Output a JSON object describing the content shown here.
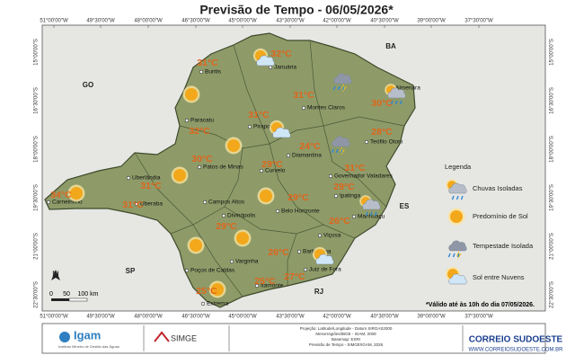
{
  "title": "Previsão de Tempo - 06/05/2026*",
  "longitudes": [
    "51°00'00\"W",
    "49°30'00\"W",
    "48°00'00\"W",
    "46°30'00\"W",
    "45°00'00\"W",
    "43°30'00\"W",
    "42°00'00\"W",
    "40°30'00\"W",
    "39°00'00\"W",
    "37°30'00\"W"
  ],
  "latitudes": [
    "15°00'00\"S",
    "16°30'00\"S",
    "18°00'00\"S",
    "19°30'00\"S",
    "21°00'00\"S",
    "22°30'00\"S"
  ],
  "states": [
    "GO",
    "BA",
    "ES",
    "SP",
    "RJ"
  ],
  "cities": [
    "Buritis",
    "Januária",
    "Montes Claros",
    "Almenara",
    "Paracatu",
    "Pirapora",
    "Teófilo Otoni",
    "Diamantina",
    "Patos de Minas",
    "Curvelo",
    "Governador Valadares",
    "Uberlândia",
    "Ipatinga",
    "Campos Altos",
    "Uberaba",
    "Carneirinho",
    "Divinópolis",
    "Belo Horizonte",
    "Manhuaçu",
    "Viçosa",
    "Barbacena",
    "Juiz de Fora",
    "Poços de Caldas",
    "Varginha",
    "Itamonte",
    "Extrema"
  ],
  "temperatures": [
    "32°C",
    "31°C",
    "31°C",
    "30°C",
    "31°C",
    "32°C",
    "28°C",
    "24°C",
    "30°C",
    "29°C",
    "31°C",
    "31°C",
    "29°C",
    "34°C",
    "29°C",
    "31°C",
    "26°C",
    "29°C",
    "26°C",
    "27°C",
    "25°C",
    "25°C"
  ],
  "legend": {
    "title": "Legenda",
    "items": [
      "Chuvas Isoladas",
      "Predomínio de Sol",
      "Tempestade Isolada",
      "Sol entre Nuvens"
    ]
  },
  "note": "*Válido até às 10h do dia 07/05/2026.",
  "scale": [
    "0",
    "50",
    "100 km"
  ],
  "north": "N",
  "footer": {
    "igam": "Igam",
    "igam_sub": "Instituto Mineiro de Gestão das Águas",
    "simge": "SIMGE",
    "credits": [
      "Projeção: Latitude/Longitude - Datum SIRGAS2000",
      "Mesorregiões/IBGE - IGAM, 2009",
      "Basemap: ESRI",
      "Previsão de Tempo - SIMGE/IGAM, 2026"
    ],
    "brand": "CORREIO SUDOESTE",
    "site": "WWW.CORREIOSUDOESTE.COM.BR"
  }
}
